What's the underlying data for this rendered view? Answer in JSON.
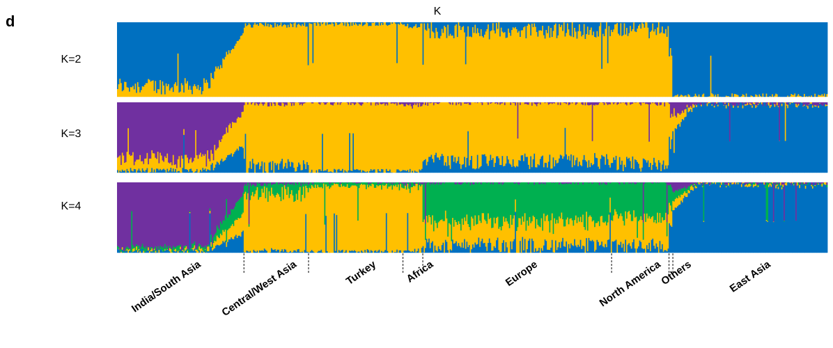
{
  "panel_letter": "d",
  "chart_data": {
    "type": "bar",
    "title": "K",
    "subtype": "stacked-admixture",
    "groups": [
      "India/South Asia",
      "Central/West Asia",
      "Turkey",
      "Africa",
      "Europe",
      "North America",
      "Others",
      "East Asia"
    ],
    "group_fraction_of_samples": [
      0.23,
      0.117,
      0.171,
      0.036,
      0.342,
      0.104,
      0.007,
      0.28
    ],
    "colors": {
      "blue": "#0070C0",
      "yellow": "#FFC000",
      "purple": "#7030A0",
      "green": "#00B050"
    },
    "panels": [
      {
        "k_label": "K=2",
        "components": [
          "blue",
          "yellow"
        ],
        "mean_proportions": {
          "India/South Asia": [
            0.85,
            0.15
          ],
          "Central/West Asia": [
            0.04,
            0.96
          ],
          "Turkey": [
            0.02,
            0.98
          ],
          "Africa": [
            0.05,
            0.95
          ],
          "Europe": [
            0.12,
            0.88
          ],
          "North America": [
            0.1,
            0.9
          ],
          "Others": [
            0.4,
            0.6
          ],
          "East Asia": [
            0.99,
            0.01
          ]
        }
      },
      {
        "k_label": "K=3",
        "components": [
          "purple",
          "yellow",
          "blue"
        ],
        "mean_proportions": {
          "India/South Asia": [
            0.8,
            0.17,
            0.03
          ],
          "Central/West Asia": [
            0.02,
            0.9,
            0.08
          ],
          "Turkey": [
            0.01,
            0.97,
            0.02
          ],
          "Africa": [
            0.05,
            0.92,
            0.03
          ],
          "Europe": [
            0.01,
            0.82,
            0.17
          ],
          "North America": [
            0.02,
            0.85,
            0.13
          ],
          "Others": [
            0.1,
            0.5,
            0.4
          ],
          "East Asia": [
            0.02,
            0.01,
            0.97
          ]
        }
      },
      {
        "k_label": "K=4",
        "components": [
          "purple",
          "green",
          "yellow",
          "blue"
        ],
        "mean_proportions": {
          "India/South Asia": [
            0.92,
            0.04,
            0.02,
            0.02
          ],
          "Central/West Asia": [
            0.02,
            0.15,
            0.8,
            0.03
          ],
          "Turkey": [
            0.0,
            0.05,
            0.94,
            0.01
          ],
          "Africa": [
            0.02,
            0.05,
            0.9,
            0.03
          ],
          "Europe": [
            0.0,
            0.55,
            0.35,
            0.1
          ],
          "North America": [
            0.0,
            0.5,
            0.4,
            0.1
          ],
          "Others": [
            0.05,
            0.3,
            0.3,
            0.35
          ],
          "East Asia": [
            0.01,
            0.0,
            0.01,
            0.98
          ]
        }
      }
    ]
  }
}
